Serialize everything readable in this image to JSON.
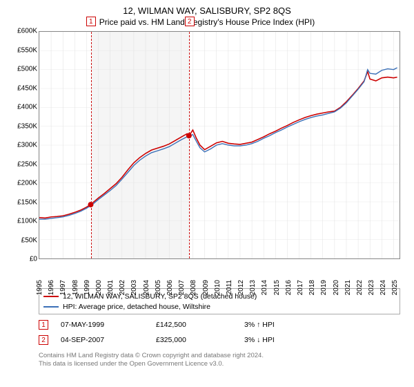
{
  "title": "12, WILMAN WAY, SALISBURY, SP2 8QS",
  "subtitle": "Price paid vs. HM Land Registry's House Price Index (HPI)",
  "chart": {
    "type": "line",
    "background_color": "#ffffff",
    "border_color": "#888888",
    "grid_color_x": "#e0e0e0",
    "grid_color_y": "#e8e8e8",
    "label_fontsize": 10,
    "x_domain": [
      1995,
      2025.5
    ],
    "y_domain": [
      0,
      600000
    ],
    "y_ticks": [
      0,
      50000,
      100000,
      150000,
      200000,
      250000,
      300000,
      350000,
      400000,
      450000,
      500000,
      550000,
      600000
    ],
    "y_tick_labels": [
      "£0",
      "£50K",
      "£100K",
      "£150K",
      "£200K",
      "£250K",
      "£300K",
      "£350K",
      "£400K",
      "£450K",
      "£500K",
      "£550K",
      "£600K"
    ],
    "x_ticks": [
      1995,
      1996,
      1997,
      1998,
      1999,
      2000,
      2001,
      2002,
      2003,
      2004,
      2005,
      2006,
      2007,
      2008,
      2009,
      2010,
      2011,
      2012,
      2013,
      2014,
      2015,
      2016,
      2017,
      2018,
      2019,
      2020,
      2021,
      2022,
      2023,
      2024,
      2025
    ],
    "band": {
      "fill": "#f5f5f5",
      "border_color": "#cc0000",
      "border_dash": "2,2",
      "x_start": 1999.35,
      "x_end": 2007.67
    },
    "series": [
      {
        "name": "property",
        "color": "#cc0000",
        "width": 1.6,
        "points": [
          [
            1995.0,
            108000
          ],
          [
            1995.5,
            107000
          ],
          [
            1996.0,
            110000
          ],
          [
            1996.5,
            111000
          ],
          [
            1997.0,
            113000
          ],
          [
            1997.5,
            117000
          ],
          [
            1998.0,
            122000
          ],
          [
            1998.5,
            128000
          ],
          [
            1999.0,
            136000
          ],
          [
            1999.35,
            142500
          ],
          [
            1999.5,
            147000
          ],
          [
            2000.0,
            160000
          ],
          [
            2000.5,
            172000
          ],
          [
            2001.0,
            185000
          ],
          [
            2001.5,
            198000
          ],
          [
            2002.0,
            215000
          ],
          [
            2002.5,
            235000
          ],
          [
            2003.0,
            253000
          ],
          [
            2003.5,
            267000
          ],
          [
            2004.0,
            278000
          ],
          [
            2004.5,
            287000
          ],
          [
            2005.0,
            292000
          ],
          [
            2005.5,
            297000
          ],
          [
            2006.0,
            303000
          ],
          [
            2006.5,
            312000
          ],
          [
            2007.0,
            321000
          ],
          [
            2007.5,
            330000
          ],
          [
            2007.67,
            325000
          ],
          [
            2008.0,
            340000
          ],
          [
            2008.3,
            318000
          ],
          [
            2008.6,
            300000
          ],
          [
            2009.0,
            288000
          ],
          [
            2009.5,
            297000
          ],
          [
            2010.0,
            306000
          ],
          [
            2010.5,
            310000
          ],
          [
            2011.0,
            305000
          ],
          [
            2011.5,
            303000
          ],
          [
            2012.0,
            302000
          ],
          [
            2012.5,
            305000
          ],
          [
            2013.0,
            308000
          ],
          [
            2013.5,
            315000
          ],
          [
            2014.0,
            322000
          ],
          [
            2014.5,
            330000
          ],
          [
            2015.0,
            337000
          ],
          [
            2015.5,
            345000
          ],
          [
            2016.0,
            352000
          ],
          [
            2016.5,
            360000
          ],
          [
            2017.0,
            367000
          ],
          [
            2017.5,
            373000
          ],
          [
            2018.0,
            378000
          ],
          [
            2018.5,
            382000
          ],
          [
            2019.0,
            385000
          ],
          [
            2019.5,
            388000
          ],
          [
            2020.0,
            390000
          ],
          [
            2020.5,
            400000
          ],
          [
            2021.0,
            415000
          ],
          [
            2021.5,
            432000
          ],
          [
            2022.0,
            450000
          ],
          [
            2022.5,
            470000
          ],
          [
            2022.8,
            495000
          ],
          [
            2023.0,
            475000
          ],
          [
            2023.5,
            470000
          ],
          [
            2024.0,
            478000
          ],
          [
            2024.5,
            480000
          ],
          [
            2025.0,
            478000
          ],
          [
            2025.3,
            480000
          ]
        ]
      },
      {
        "name": "hpi",
        "color": "#3a6fb7",
        "width": 1.4,
        "points": [
          [
            1995.0,
            104000
          ],
          [
            1995.5,
            104000
          ],
          [
            1996.0,
            106000
          ],
          [
            1996.5,
            108000
          ],
          [
            1997.0,
            110000
          ],
          [
            1997.5,
            114000
          ],
          [
            1998.0,
            119000
          ],
          [
            1998.5,
            125000
          ],
          [
            1999.0,
            133000
          ],
          [
            1999.5,
            143000
          ],
          [
            2000.0,
            156000
          ],
          [
            2000.5,
            168000
          ],
          [
            2001.0,
            180000
          ],
          [
            2001.5,
            193000
          ],
          [
            2002.0,
            210000
          ],
          [
            2002.5,
            228000
          ],
          [
            2003.0,
            246000
          ],
          [
            2003.5,
            260000
          ],
          [
            2004.0,
            271000
          ],
          [
            2004.5,
            280000
          ],
          [
            2005.0,
            285000
          ],
          [
            2005.5,
            290000
          ],
          [
            2006.0,
            296000
          ],
          [
            2006.5,
            305000
          ],
          [
            2007.0,
            314000
          ],
          [
            2007.5,
            322000
          ],
          [
            2008.0,
            328000
          ],
          [
            2008.3,
            310000
          ],
          [
            2008.6,
            293000
          ],
          [
            2009.0,
            282000
          ],
          [
            2009.5,
            290000
          ],
          [
            2010.0,
            300000
          ],
          [
            2010.5,
            304000
          ],
          [
            2011.0,
            300000
          ],
          [
            2011.5,
            298000
          ],
          [
            2012.0,
            298000
          ],
          [
            2012.5,
            300000
          ],
          [
            2013.0,
            304000
          ],
          [
            2013.5,
            310000
          ],
          [
            2014.0,
            318000
          ],
          [
            2014.5,
            325000
          ],
          [
            2015.0,
            333000
          ],
          [
            2015.5,
            340000
          ],
          [
            2016.0,
            348000
          ],
          [
            2016.5,
            355000
          ],
          [
            2017.0,
            362000
          ],
          [
            2017.5,
            368000
          ],
          [
            2018.0,
            373000
          ],
          [
            2018.5,
            377000
          ],
          [
            2019.0,
            380000
          ],
          [
            2019.5,
            384000
          ],
          [
            2020.0,
            388000
          ],
          [
            2020.5,
            398000
          ],
          [
            2021.0,
            412000
          ],
          [
            2021.5,
            430000
          ],
          [
            2022.0,
            448000
          ],
          [
            2022.5,
            468000
          ],
          [
            2022.8,
            500000
          ],
          [
            2023.0,
            490000
          ],
          [
            2023.5,
            488000
          ],
          [
            2024.0,
            498000
          ],
          [
            2024.5,
            502000
          ],
          [
            2025.0,
            500000
          ],
          [
            2025.3,
            505000
          ]
        ]
      }
    ],
    "markers": [
      {
        "label": "1",
        "x": 1999.35,
        "y": 142500,
        "color": "#cc0000",
        "radius": 4
      },
      {
        "label": "2",
        "x": 2007.67,
        "y": 325000,
        "color": "#cc0000",
        "radius": 4
      }
    ]
  },
  "legend": {
    "border_color": "#aaaaaa",
    "items": [
      {
        "color": "#cc0000",
        "label": "12, WILMAN WAY, SALISBURY, SP2 8QS (detached house)"
      },
      {
        "color": "#3a6fb7",
        "label": "HPI: Average price, detached house, Wiltshire"
      }
    ]
  },
  "events": [
    {
      "n": "1",
      "color": "#cc0000",
      "date": "07-MAY-1999",
      "price": "£142,500",
      "diff": "3% ↑ HPI",
      "arrow": "↑"
    },
    {
      "n": "2",
      "color": "#cc0000",
      "date": "04-SEP-2007",
      "price": "£325,000",
      "diff": "3% ↓ HPI",
      "arrow": "↓"
    }
  ],
  "footnote": {
    "line1": "Contains HM Land Registry data © Crown copyright and database right 2024.",
    "line2": "This data is licensed under the Open Government Licence v3.0.",
    "color": "#777777"
  }
}
